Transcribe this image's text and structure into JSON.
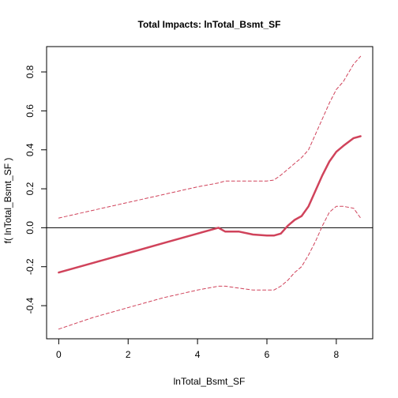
{
  "chart_data": {
    "type": "line",
    "title": "Total Impacts:  lnTotal_Bsmt_SF",
    "xlabel": "lnTotal_Bsmt_SF",
    "ylabel": "f( lnTotal_Bsmt_SF )",
    "xlim": [
      -0.35,
      9.05
    ],
    "ylim": [
      -0.57,
      0.93
    ],
    "xticks": [
      0,
      2,
      4,
      6,
      8
    ],
    "yticks": [
      -0.4,
      -0.2,
      0.0,
      0.2,
      0.4,
      0.6,
      0.8
    ],
    "xtick_labels": [
      "0",
      "2",
      "4",
      "6",
      "8"
    ],
    "ytick_labels": [
      "-0.4",
      "-0.2",
      "0.0",
      "0.2",
      "0.4",
      "0.6",
      "0.8"
    ],
    "reference_line": 0,
    "colors": {
      "series": "#d0435b",
      "reference": "#000000"
    },
    "series": [
      {
        "style": "solid",
        "x": [
          0,
          1,
          2,
          3,
          4,
          4.6,
          4.8,
          5.2,
          5.6,
          6.0,
          6.2,
          6.4,
          6.6,
          6.8,
          7.0,
          7.2,
          7.4,
          7.6,
          7.8,
          8.0,
          8.2,
          8.5,
          8.7
        ],
        "y": [
          -0.23,
          -0.18,
          -0.13,
          -0.08,
          -0.03,
          0.0,
          -0.02,
          -0.02,
          -0.035,
          -0.04,
          -0.04,
          -0.03,
          0.01,
          0.04,
          0.06,
          0.11,
          0.19,
          0.27,
          0.34,
          0.39,
          0.42,
          0.46,
          0.47
        ]
      },
      {
        "style": "dashed",
        "x": [
          0,
          1,
          2,
          3,
          4,
          4.6,
          4.8,
          5.2,
          5.6,
          6.0,
          6.2,
          6.4,
          6.6,
          6.8,
          7.0,
          7.2,
          7.4,
          7.6,
          7.8,
          8.0,
          8.2,
          8.5,
          8.7
        ],
        "y": [
          0.05,
          0.09,
          0.13,
          0.17,
          0.21,
          0.23,
          0.24,
          0.24,
          0.24,
          0.24,
          0.245,
          0.27,
          0.3,
          0.33,
          0.36,
          0.4,
          0.48,
          0.56,
          0.64,
          0.71,
          0.75,
          0.84,
          0.88
        ]
      },
      {
        "style": "dashed",
        "x": [
          0,
          1,
          2,
          3,
          4,
          4.6,
          4.8,
          5.2,
          5.6,
          6.0,
          6.2,
          6.4,
          6.6,
          6.8,
          7.0,
          7.2,
          7.4,
          7.6,
          7.8,
          8.0,
          8.2,
          8.5,
          8.7
        ],
        "y": [
          -0.52,
          -0.46,
          -0.41,
          -0.36,
          -0.32,
          -0.3,
          -0.3,
          -0.31,
          -0.32,
          -0.32,
          -0.32,
          -0.3,
          -0.27,
          -0.23,
          -0.2,
          -0.14,
          -0.07,
          0.01,
          0.08,
          0.11,
          0.11,
          0.1,
          0.05
        ]
      }
    ]
  }
}
